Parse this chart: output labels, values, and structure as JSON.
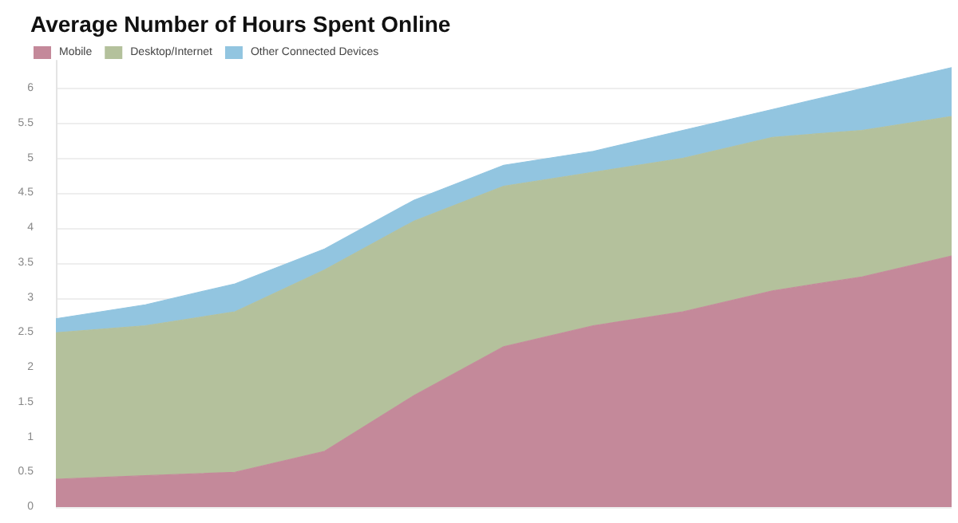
{
  "chart_data": {
    "type": "area",
    "title": "Average Number of Hours Spent Online",
    "stacked": true,
    "categories": [
      null,
      null,
      null,
      null,
      null,
      null,
      null,
      null,
      null,
      null,
      null
    ],
    "series": [
      {
        "name": "Mobile",
        "color": "#c4899a",
        "values": [
          0.4,
          0.45,
          0.5,
          0.8,
          1.6,
          2.3,
          2.6,
          2.8,
          3.1,
          3.3,
          3.6
        ]
      },
      {
        "name": "Desktop/Internet",
        "color": "#b4c19c",
        "values": [
          2.1,
          2.15,
          2.3,
          2.6,
          2.5,
          2.3,
          2.2,
          2.2,
          2.2,
          2.1,
          2.0
        ]
      },
      {
        "name": "Other Connected Devices",
        "color": "#92c5e0",
        "values": [
          0.2,
          0.3,
          0.4,
          0.3,
          0.3,
          0.3,
          0.3,
          0.4,
          0.4,
          0.6,
          0.7
        ]
      }
    ],
    "ylim": [
      0,
      6.4
    ],
    "yticks": [
      0,
      0.5,
      1,
      1.5,
      2,
      2.5,
      3,
      3.5,
      4,
      4.5,
      5,
      5.5,
      6
    ],
    "grid": "y",
    "legend": "top left",
    "tick_labels": "y"
  }
}
